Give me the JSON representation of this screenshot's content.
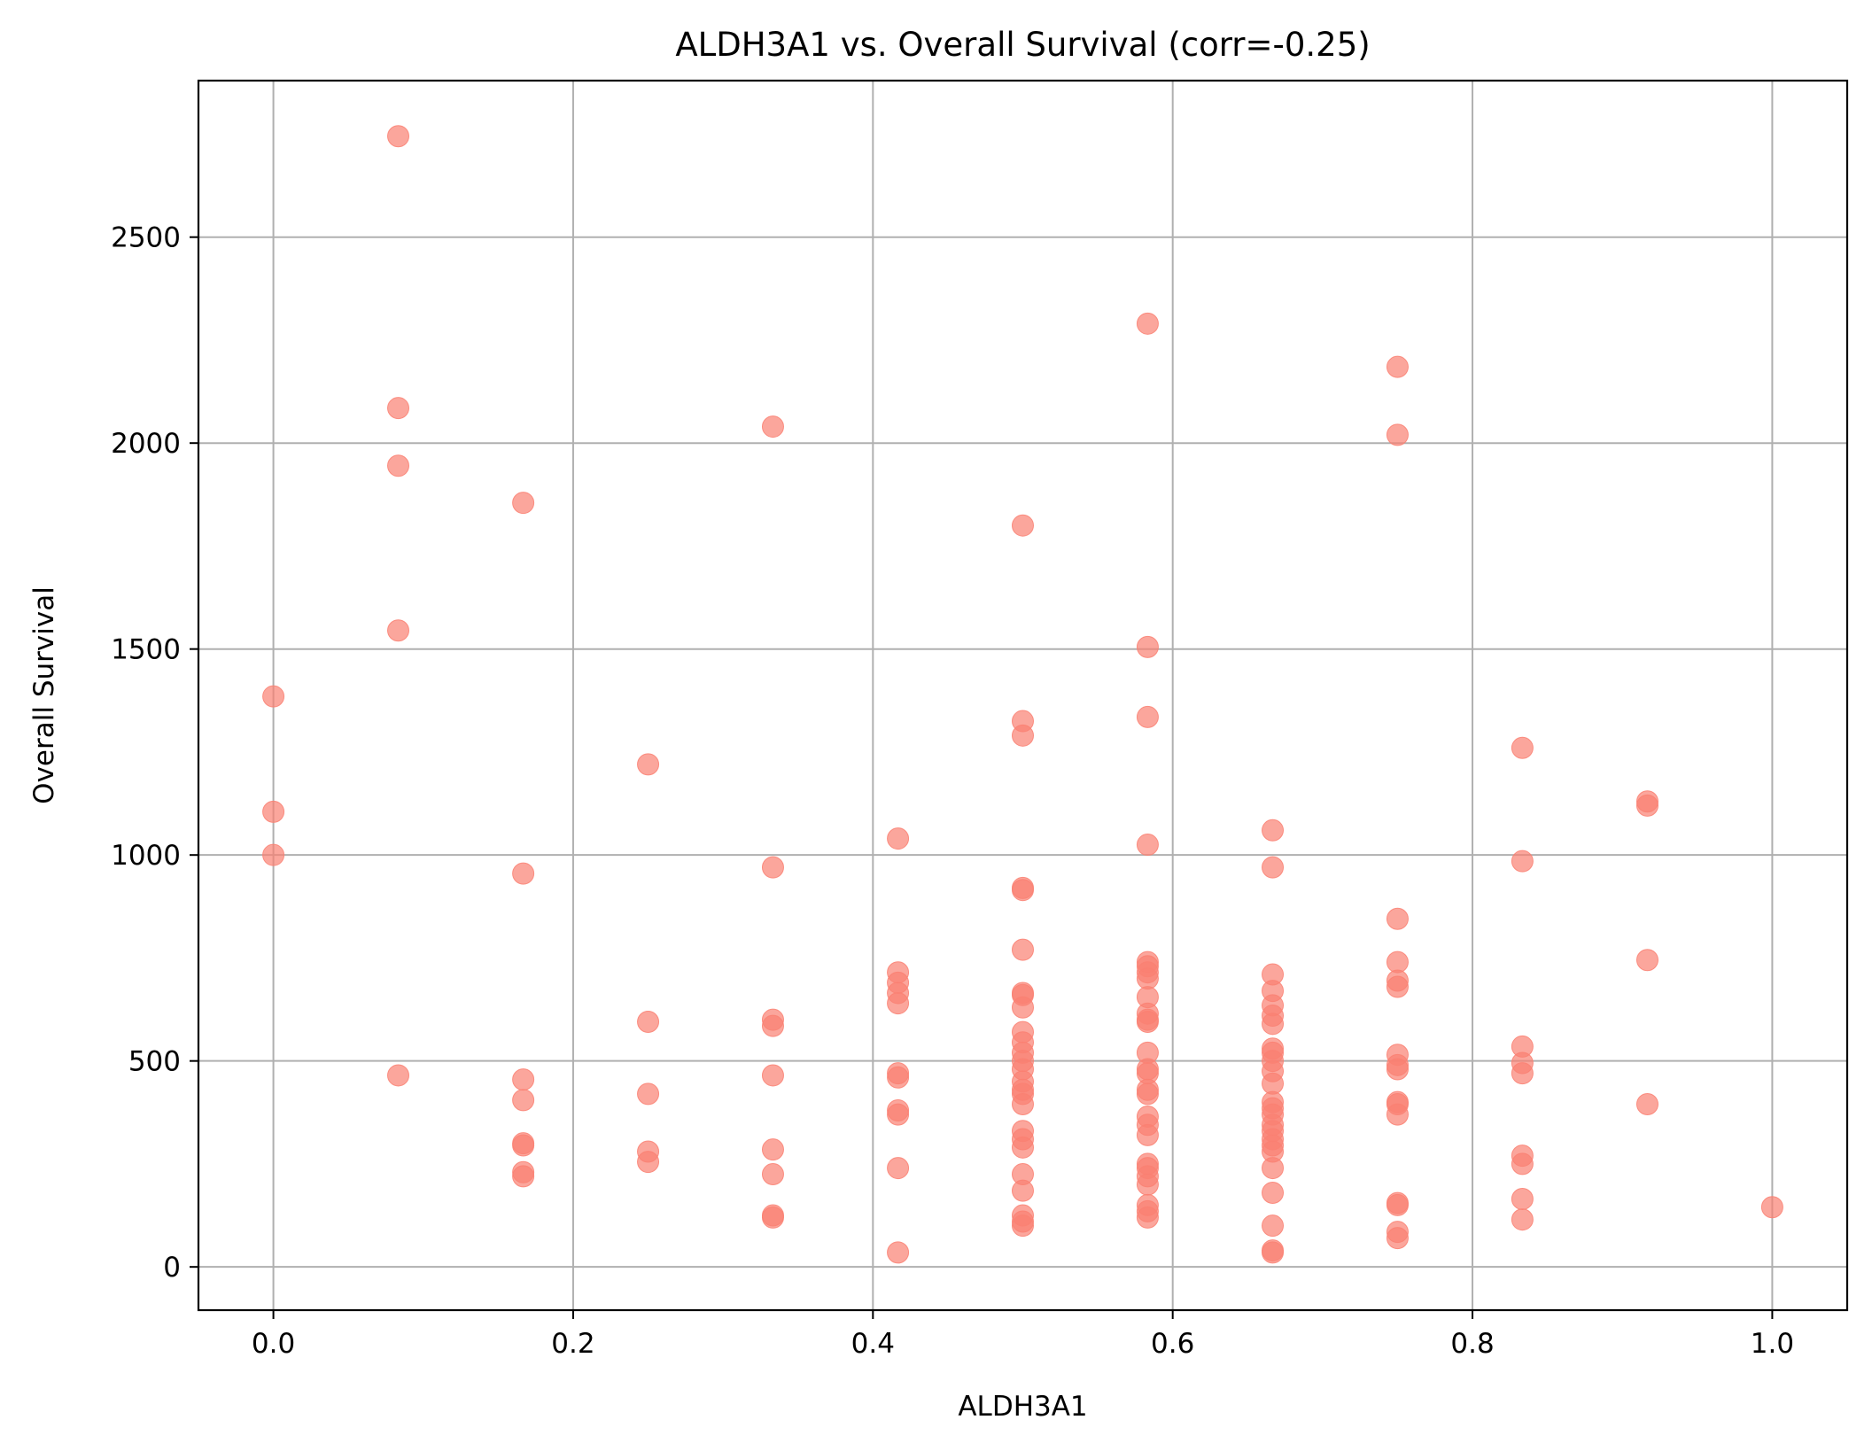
{
  "chart_data": {
    "type": "scatter",
    "title": "ALDH3A1 vs. Overall Survival (corr=-0.25)",
    "xlabel": "ALDH3A1",
    "ylabel": "Overall Survival",
    "xlim": [
      -0.05,
      1.05
    ],
    "ylim": [
      -105,
      2880
    ],
    "xticks": [
      0.0,
      0.2,
      0.4,
      0.6,
      0.8,
      1.0
    ],
    "xtick_labels": [
      "0.0",
      "0.2",
      "0.4",
      "0.6",
      "0.8",
      "1.0"
    ],
    "yticks": [
      0,
      500,
      1000,
      1500,
      2000,
      2500
    ],
    "ytick_labels": [
      "0",
      "500",
      "1000",
      "1500",
      "2000",
      "2500"
    ],
    "grid": true,
    "marker_color": "#fa8072",
    "marker_opacity": 0.7,
    "points": [
      {
        "x": 0.0,
        "y": 1385
      },
      {
        "x": 0.0,
        "y": 1105
      },
      {
        "x": 0.0,
        "y": 1000
      },
      {
        "x": 0.0833,
        "y": 2745
      },
      {
        "x": 0.0833,
        "y": 2085
      },
      {
        "x": 0.0833,
        "y": 1945
      },
      {
        "x": 0.0833,
        "y": 1545
      },
      {
        "x": 0.0833,
        "y": 465
      },
      {
        "x": 0.1667,
        "y": 1855
      },
      {
        "x": 0.1667,
        "y": 955
      },
      {
        "x": 0.1667,
        "y": 455
      },
      {
        "x": 0.1667,
        "y": 405
      },
      {
        "x": 0.1667,
        "y": 300
      },
      {
        "x": 0.1667,
        "y": 295
      },
      {
        "x": 0.1667,
        "y": 230
      },
      {
        "x": 0.1667,
        "y": 220
      },
      {
        "x": 0.25,
        "y": 1220
      },
      {
        "x": 0.25,
        "y": 595
      },
      {
        "x": 0.25,
        "y": 420
      },
      {
        "x": 0.25,
        "y": 280
      },
      {
        "x": 0.25,
        "y": 255
      },
      {
        "x": 0.3333,
        "y": 2040
      },
      {
        "x": 0.3333,
        "y": 970
      },
      {
        "x": 0.3333,
        "y": 600
      },
      {
        "x": 0.3333,
        "y": 585
      },
      {
        "x": 0.3333,
        "y": 465
      },
      {
        "x": 0.3333,
        "y": 285
      },
      {
        "x": 0.3333,
        "y": 225
      },
      {
        "x": 0.3333,
        "y": 125
      },
      {
        "x": 0.3333,
        "y": 120
      },
      {
        "x": 0.4167,
        "y": 1040
      },
      {
        "x": 0.4167,
        "y": 715
      },
      {
        "x": 0.4167,
        "y": 690
      },
      {
        "x": 0.4167,
        "y": 665
      },
      {
        "x": 0.4167,
        "y": 640
      },
      {
        "x": 0.4167,
        "y": 470
      },
      {
        "x": 0.4167,
        "y": 460
      },
      {
        "x": 0.4167,
        "y": 380
      },
      {
        "x": 0.4167,
        "y": 370
      },
      {
        "x": 0.4167,
        "y": 240
      },
      {
        "x": 0.4167,
        "y": 35
      },
      {
        "x": 0.5,
        "y": 1800
      },
      {
        "x": 0.5,
        "y": 1325
      },
      {
        "x": 0.5,
        "y": 1290
      },
      {
        "x": 0.5,
        "y": 920
      },
      {
        "x": 0.5,
        "y": 915
      },
      {
        "x": 0.5,
        "y": 770
      },
      {
        "x": 0.5,
        "y": 665
      },
      {
        "x": 0.5,
        "y": 660
      },
      {
        "x": 0.5,
        "y": 630
      },
      {
        "x": 0.5,
        "y": 570
      },
      {
        "x": 0.5,
        "y": 545
      },
      {
        "x": 0.5,
        "y": 520
      },
      {
        "x": 0.5,
        "y": 500
      },
      {
        "x": 0.5,
        "y": 480
      },
      {
        "x": 0.5,
        "y": 450
      },
      {
        "x": 0.5,
        "y": 430
      },
      {
        "x": 0.5,
        "y": 420
      },
      {
        "x": 0.5,
        "y": 395
      },
      {
        "x": 0.5,
        "y": 330
      },
      {
        "x": 0.5,
        "y": 310
      },
      {
        "x": 0.5,
        "y": 290
      },
      {
        "x": 0.5,
        "y": 225
      },
      {
        "x": 0.5,
        "y": 185
      },
      {
        "x": 0.5,
        "y": 125
      },
      {
        "x": 0.5,
        "y": 110
      },
      {
        "x": 0.5,
        "y": 100
      },
      {
        "x": 0.5833,
        "y": 2290
      },
      {
        "x": 0.5833,
        "y": 1505
      },
      {
        "x": 0.5833,
        "y": 1335
      },
      {
        "x": 0.5833,
        "y": 1025
      },
      {
        "x": 0.5833,
        "y": 740
      },
      {
        "x": 0.5833,
        "y": 730
      },
      {
        "x": 0.5833,
        "y": 715
      },
      {
        "x": 0.5833,
        "y": 700
      },
      {
        "x": 0.5833,
        "y": 655
      },
      {
        "x": 0.5833,
        "y": 615
      },
      {
        "x": 0.5833,
        "y": 600
      },
      {
        "x": 0.5833,
        "y": 595
      },
      {
        "x": 0.5833,
        "y": 520
      },
      {
        "x": 0.5833,
        "y": 480
      },
      {
        "x": 0.5833,
        "y": 470
      },
      {
        "x": 0.5833,
        "y": 430
      },
      {
        "x": 0.5833,
        "y": 420
      },
      {
        "x": 0.5833,
        "y": 365
      },
      {
        "x": 0.5833,
        "y": 345
      },
      {
        "x": 0.5833,
        "y": 320
      },
      {
        "x": 0.5833,
        "y": 250
      },
      {
        "x": 0.5833,
        "y": 240
      },
      {
        "x": 0.5833,
        "y": 220
      },
      {
        "x": 0.5833,
        "y": 200
      },
      {
        "x": 0.5833,
        "y": 150
      },
      {
        "x": 0.5833,
        "y": 135
      },
      {
        "x": 0.5833,
        "y": 120
      },
      {
        "x": 0.6667,
        "y": 1060
      },
      {
        "x": 0.6667,
        "y": 970
      },
      {
        "x": 0.6667,
        "y": 710
      },
      {
        "x": 0.6667,
        "y": 670
      },
      {
        "x": 0.6667,
        "y": 635
      },
      {
        "x": 0.6667,
        "y": 610
      },
      {
        "x": 0.6667,
        "y": 590
      },
      {
        "x": 0.6667,
        "y": 530
      },
      {
        "x": 0.6667,
        "y": 520
      },
      {
        "x": 0.6667,
        "y": 500
      },
      {
        "x": 0.6667,
        "y": 475
      },
      {
        "x": 0.6667,
        "y": 445
      },
      {
        "x": 0.6667,
        "y": 400
      },
      {
        "x": 0.6667,
        "y": 385
      },
      {
        "x": 0.6667,
        "y": 370
      },
      {
        "x": 0.6667,
        "y": 345
      },
      {
        "x": 0.6667,
        "y": 330
      },
      {
        "x": 0.6667,
        "y": 310
      },
      {
        "x": 0.6667,
        "y": 295
      },
      {
        "x": 0.6667,
        "y": 280
      },
      {
        "x": 0.6667,
        "y": 240
      },
      {
        "x": 0.6667,
        "y": 180
      },
      {
        "x": 0.6667,
        "y": 100
      },
      {
        "x": 0.6667,
        "y": 40
      },
      {
        "x": 0.6667,
        "y": 35
      },
      {
        "x": 0.75,
        "y": 2185
      },
      {
        "x": 0.75,
        "y": 2020
      },
      {
        "x": 0.75,
        "y": 845
      },
      {
        "x": 0.75,
        "y": 740
      },
      {
        "x": 0.75,
        "y": 695
      },
      {
        "x": 0.75,
        "y": 680
      },
      {
        "x": 0.75,
        "y": 515
      },
      {
        "x": 0.75,
        "y": 490
      },
      {
        "x": 0.75,
        "y": 480
      },
      {
        "x": 0.75,
        "y": 400
      },
      {
        "x": 0.75,
        "y": 395
      },
      {
        "x": 0.75,
        "y": 370
      },
      {
        "x": 0.75,
        "y": 155
      },
      {
        "x": 0.75,
        "y": 150
      },
      {
        "x": 0.75,
        "y": 85
      },
      {
        "x": 0.75,
        "y": 70
      },
      {
        "x": 0.8333,
        "y": 1260
      },
      {
        "x": 0.8333,
        "y": 985
      },
      {
        "x": 0.8333,
        "y": 535
      },
      {
        "x": 0.8333,
        "y": 495
      },
      {
        "x": 0.8333,
        "y": 470
      },
      {
        "x": 0.8333,
        "y": 270
      },
      {
        "x": 0.8333,
        "y": 250
      },
      {
        "x": 0.8333,
        "y": 165
      },
      {
        "x": 0.8333,
        "y": 115
      },
      {
        "x": 0.9167,
        "y": 1130
      },
      {
        "x": 0.9167,
        "y": 1120
      },
      {
        "x": 0.9167,
        "y": 745
      },
      {
        "x": 0.9167,
        "y": 395
      },
      {
        "x": 1.0,
        "y": 145
      }
    ]
  }
}
